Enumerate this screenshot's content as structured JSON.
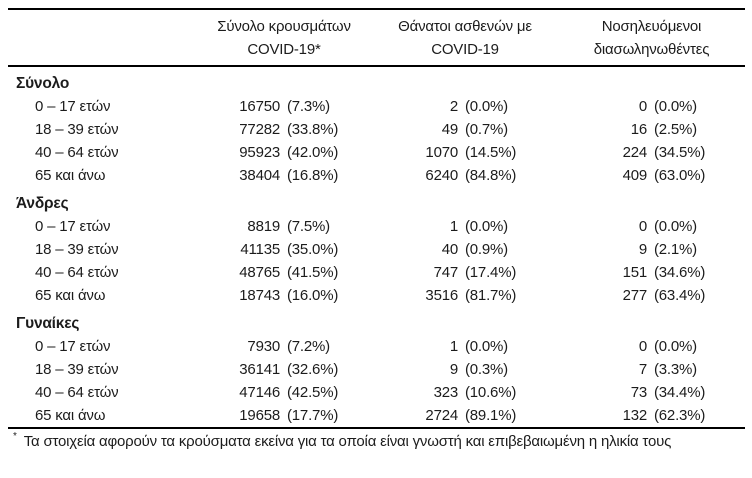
{
  "page": {
    "background": "#ffffff",
    "text_color": "#1c1c1c",
    "rule_color": "#000000"
  },
  "table": {
    "column_headers": [
      {
        "line1": "Σύνολο κρουσμάτων",
        "line2": "COVID-19*"
      },
      {
        "line1": "Θάνατοι ασθενών με",
        "line2": "COVID-19"
      },
      {
        "line1": "Νοσηλευόμενοι",
        "line2": "διασωληνωθέντες"
      }
    ],
    "sections": [
      {
        "title": "Σύνολο",
        "rows": [
          {
            "age_group": "0 – 17 ετών",
            "cases": "16750",
            "cases_pct": "(7.3%)",
            "deaths": "2",
            "deaths_pct": "(0.0%)",
            "intubated": "0",
            "intubated_pct": "(0.0%)"
          },
          {
            "age_group": "18 – 39 ετών",
            "cases": "77282",
            "cases_pct": "(33.8%)",
            "deaths": "49",
            "deaths_pct": "(0.7%)",
            "intubated": "16",
            "intubated_pct": "(2.5%)"
          },
          {
            "age_group": "40 – 64 ετών",
            "cases": "95923",
            "cases_pct": "(42.0%)",
            "deaths": "1070",
            "deaths_pct": "(14.5%)",
            "intubated": "224",
            "intubated_pct": "(34.5%)"
          },
          {
            "age_group": "65 και άνω",
            "cases": "38404",
            "cases_pct": "(16.8%)",
            "deaths": "6240",
            "deaths_pct": "(84.8%)",
            "intubated": "409",
            "intubated_pct": "(63.0%)"
          }
        ]
      },
      {
        "title": "Άνδρες",
        "rows": [
          {
            "age_group": "0 – 17 ετών",
            "cases": "8819",
            "cases_pct": "(7.5%)",
            "deaths": "1",
            "deaths_pct": "(0.0%)",
            "intubated": "0",
            "intubated_pct": "(0.0%)"
          },
          {
            "age_group": "18 – 39 ετών",
            "cases": "41135",
            "cases_pct": "(35.0%)",
            "deaths": "40",
            "deaths_pct": "(0.9%)",
            "intubated": "9",
            "intubated_pct": "(2.1%)"
          },
          {
            "age_group": "40 – 64 ετών",
            "cases": "48765",
            "cases_pct": "(41.5%)",
            "deaths": "747",
            "deaths_pct": "(17.4%)",
            "intubated": "151",
            "intubated_pct": "(34.6%)"
          },
          {
            "age_group": "65 και άνω",
            "cases": "18743",
            "cases_pct": "(16.0%)",
            "deaths": "3516",
            "deaths_pct": "(81.7%)",
            "intubated": "277",
            "intubated_pct": "(63.4%)"
          }
        ]
      },
      {
        "title": "Γυναίκες",
        "rows": [
          {
            "age_group": "0 – 17 ετών",
            "cases": "7930",
            "cases_pct": "(7.2%)",
            "deaths": "1",
            "deaths_pct": "(0.0%)",
            "intubated": "0",
            "intubated_pct": "(0.0%)"
          },
          {
            "age_group": "18 – 39 ετών",
            "cases": "36141",
            "cases_pct": "(32.6%)",
            "deaths": "9",
            "deaths_pct": "(0.3%)",
            "intubated": "7",
            "intubated_pct": "(3.3%)"
          },
          {
            "age_group": "40 – 64 ετών",
            "cases": "47146",
            "cases_pct": "(42.5%)",
            "deaths": "323",
            "deaths_pct": "(10.6%)",
            "intubated": "73",
            "intubated_pct": "(34.4%)"
          },
          {
            "age_group": "65 και άνω",
            "cases": "19658",
            "cases_pct": "(17.7%)",
            "deaths": "2724",
            "deaths_pct": "(89.1%)",
            "intubated": "132",
            "intubated_pct": "(62.3%)"
          }
        ]
      }
    ],
    "footnote": {
      "marker": "*",
      "text": "Τα στοιχεία αφορούν τα κρούσματα εκείνα για τα οποία είναι γνωστή και επιβεβαιωμένη η ηλικία τους"
    }
  }
}
